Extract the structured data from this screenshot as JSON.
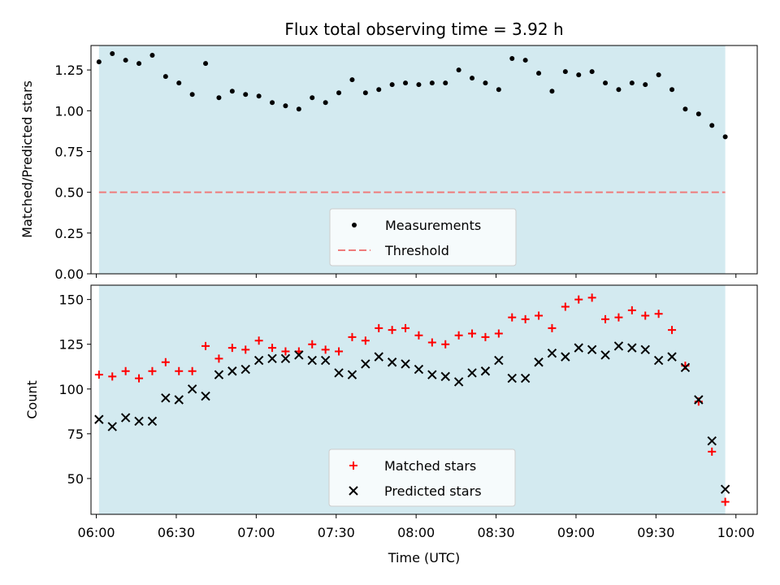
{
  "chart_data": [
    {
      "type": "scatter",
      "title": "Flux total observing time = 3.92 h",
      "xlabel": "",
      "ylabel": "Matched/Predicted stars",
      "xlim": [
        "05:58",
        "10:08"
      ],
      "ylim": [
        0,
        1.4
      ],
      "yticks": [
        "0.00",
        "0.25",
        "0.50",
        "0.75",
        "1.00",
        "1.25"
      ],
      "shaded_region": {
        "from": "06:01",
        "to": "09:56",
        "color": "#d3eaf0"
      },
      "legend_position": "lower center",
      "series": [
        {
          "name": "Measurements",
          "color": "#000000",
          "x": [
            "06:01",
            "06:06",
            "06:11",
            "06:16",
            "06:21",
            "06:26",
            "06:31",
            "06:36",
            "06:41",
            "06:46",
            "06:51",
            "06:56",
            "07:01",
            "07:06",
            "07:11",
            "07:16",
            "07:21",
            "07:26",
            "07:31",
            "07:36",
            "07:41",
            "07:46",
            "07:51",
            "07:56",
            "08:01",
            "08:06",
            "08:11",
            "08:16",
            "08:21",
            "08:26",
            "08:31",
            "08:36",
            "08:41",
            "08:46",
            "08:51",
            "08:56",
            "09:01",
            "09:06",
            "09:11",
            "09:16",
            "09:21",
            "09:26",
            "09:31",
            "09:36",
            "09:41",
            "09:46",
            "09:51",
            "09:56"
          ],
          "y": [
            1.3,
            1.35,
            1.31,
            1.29,
            1.34,
            1.21,
            1.17,
            1.1,
            1.29,
            1.08,
            1.12,
            1.1,
            1.09,
            1.05,
            1.03,
            1.01,
            1.08,
            1.05,
            1.11,
            1.19,
            1.11,
            1.13,
            1.16,
            1.17,
            1.16,
            1.17,
            1.17,
            1.25,
            1.2,
            1.17,
            1.13,
            1.32,
            1.31,
            1.23,
            1.12,
            1.24,
            1.22,
            1.24,
            1.17,
            1.13,
            1.17,
            1.16,
            1.22,
            1.13,
            1.01,
            0.98,
            0.91,
            0.84
          ]
        },
        {
          "name": "Threshold",
          "color": "#ef7b7b",
          "style": "dashed",
          "x": [
            "06:01",
            "09:56"
          ],
          "y": [
            0.5,
            0.5
          ]
        }
      ]
    },
    {
      "type": "scatter",
      "title": "",
      "xlabel": "Time (UTC)",
      "ylabel": "Count",
      "xlim": [
        "05:58",
        "10:08"
      ],
      "ylim": [
        30,
        158
      ],
      "xticks": [
        "06:00",
        "06:30",
        "07:00",
        "07:30",
        "08:00",
        "08:30",
        "09:00",
        "09:30",
        "10:00"
      ],
      "yticks": [
        "50",
        "75",
        "100",
        "125",
        "150"
      ],
      "shaded_region": {
        "from": "06:01",
        "to": "09:56",
        "color": "#d3eaf0"
      },
      "legend_position": "lower center",
      "series": [
        {
          "name": "Matched stars",
          "color": "#ff0000",
          "marker": "plus",
          "x": [
            "06:01",
            "06:06",
            "06:11",
            "06:16",
            "06:21",
            "06:26",
            "06:31",
            "06:36",
            "06:41",
            "06:46",
            "06:51",
            "06:56",
            "07:01",
            "07:06",
            "07:11",
            "07:16",
            "07:21",
            "07:26",
            "07:31",
            "07:36",
            "07:41",
            "07:46",
            "07:51",
            "07:56",
            "08:01",
            "08:06",
            "08:11",
            "08:16",
            "08:21",
            "08:26",
            "08:31",
            "08:36",
            "08:41",
            "08:46",
            "08:51",
            "08:56",
            "09:01",
            "09:06",
            "09:11",
            "09:16",
            "09:21",
            "09:26",
            "09:31",
            "09:36",
            "09:41",
            "09:46",
            "09:51",
            "09:56"
          ],
          "y": [
            108,
            107,
            110,
            106,
            110,
            115,
            110,
            110,
            124,
            117,
            123,
            122,
            127,
            123,
            121,
            121,
            125,
            122,
            121,
            129,
            127,
            134,
            133,
            134,
            130,
            126,
            125,
            130,
            131,
            129,
            131,
            140,
            139,
            141,
            134,
            146,
            150,
            151,
            139,
            140,
            144,
            141,
            142,
            133,
            113,
            93,
            65,
            37
          ]
        },
        {
          "name": "Predicted stars",
          "color": "#000000",
          "marker": "cross",
          "x": [
            "06:01",
            "06:06",
            "06:11",
            "06:16",
            "06:21",
            "06:26",
            "06:31",
            "06:36",
            "06:41",
            "06:46",
            "06:51",
            "06:56",
            "07:01",
            "07:06",
            "07:11",
            "07:16",
            "07:21",
            "07:26",
            "07:31",
            "07:36",
            "07:41",
            "07:46",
            "07:51",
            "07:56",
            "08:01",
            "08:06",
            "08:11",
            "08:16",
            "08:21",
            "08:26",
            "08:31",
            "08:36",
            "08:41",
            "08:46",
            "08:51",
            "08:56",
            "09:01",
            "09:06",
            "09:11",
            "09:16",
            "09:21",
            "09:26",
            "09:31",
            "09:36",
            "09:41",
            "09:46",
            "09:51",
            "09:56"
          ],
          "y": [
            83,
            79,
            84,
            82,
            82,
            95,
            94,
            100,
            96,
            108,
            110,
            111,
            116,
            117,
            117,
            119,
            116,
            116,
            109,
            108,
            114,
            118,
            115,
            114,
            111,
            108,
            107,
            104,
            109,
            110,
            116,
            106,
            106,
            115,
            120,
            118,
            123,
            122,
            119,
            124,
            123,
            122,
            116,
            118,
            112,
            94,
            71,
            44
          ]
        }
      ]
    }
  ]
}
